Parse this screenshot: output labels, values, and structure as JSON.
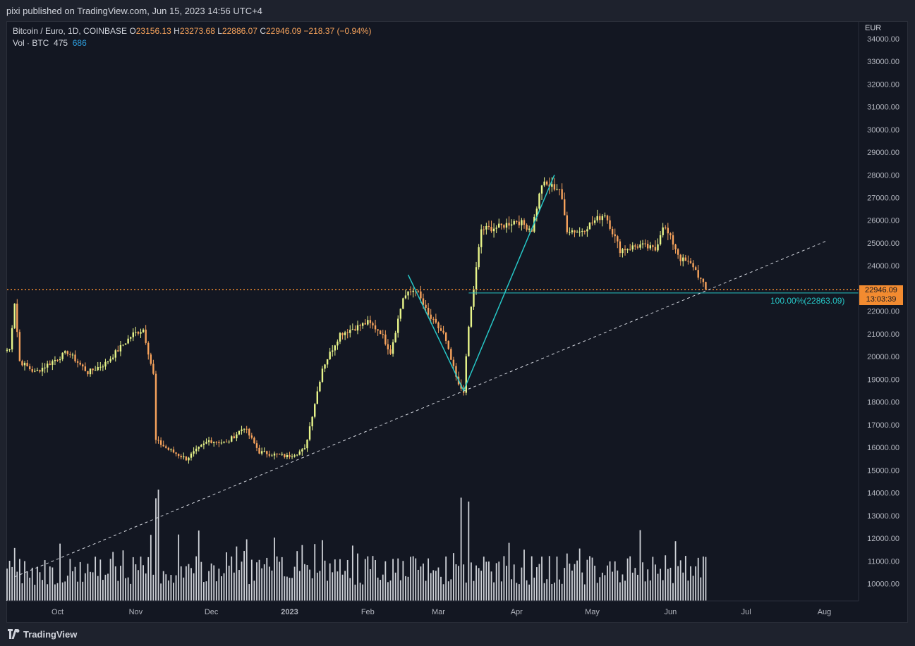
{
  "header": {
    "published": "pixi published on TradingView.com, Jun 15, 2023 14:56 UTC+4"
  },
  "legend": {
    "symbol": "Bitcoin / Euro, 1D, COINBASE",
    "o_label": "O",
    "o_value": "23156.13",
    "h_label": "H",
    "h_value": "23273.68",
    "l_label": "L",
    "l_value": "22886.07",
    "c_label": "C",
    "c_value": "22946.09",
    "change": "−218.37 (−0.94%)",
    "vol_label": "Vol · BTC",
    "vol_value1": "475",
    "vol_value2": "686"
  },
  "price_axis": {
    "currency": "EUR"
  },
  "last_price": {
    "value": "22946.09",
    "countdown": "13:03:39"
  },
  "fib": {
    "label": "100.00%(22863.09)"
  },
  "footer": {
    "brand": "TradingView"
  },
  "colors": {
    "up": "#e8f58a",
    "down": "#f7a35c",
    "volume": "#cfd2d8",
    "pattern": "#26c6c6",
    "trend": "#d1d4dc",
    "price_line": "#f28b30",
    "background": "#131722"
  },
  "chart_data": {
    "type": "candlestick",
    "title": "Bitcoin / Euro, 1D, COINBASE",
    "x_tick_labels": [
      "Oct",
      "Nov",
      "Dec",
      "2023",
      "Feb",
      "Mar",
      "Apr",
      "May",
      "Jun",
      "Jul",
      "Aug"
    ],
    "y_tick_labels": [
      "10000.00",
      "11000.00",
      "12000.00",
      "13000.00",
      "14000.00",
      "15000.00",
      "16000.00",
      "17000.00",
      "18000.00",
      "19000.00",
      "20000.00",
      "21000.00",
      "22000.00",
      "23000.00",
      "24000.00",
      "25000.00",
      "26000.00",
      "27000.00",
      "28000.00",
      "29000.00",
      "30000.00",
      "31000.00",
      "32000.00",
      "33000.00",
      "34000.00"
    ],
    "ylim": [
      9200,
      34600
    ],
    "price_anchors": [
      [
        "2022-09-12",
        20300
      ],
      [
        "2022-09-14",
        22400
      ],
      [
        "2022-09-16",
        19800
      ],
      [
        "2022-09-22",
        19300
      ],
      [
        "2022-10-05",
        20200
      ],
      [
        "2022-10-13",
        19300
      ],
      [
        "2022-10-20",
        19700
      ],
      [
        "2022-10-31",
        21000
      ],
      [
        "2022-11-04",
        21200
      ],
      [
        "2022-11-08",
        19200
      ],
      [
        "2022-11-09",
        16300
      ],
      [
        "2022-11-14",
        15900
      ],
      [
        "2022-11-21",
        15500
      ],
      [
        "2022-11-30",
        16300
      ],
      [
        "2022-12-07",
        16200
      ],
      [
        "2022-12-14",
        16900
      ],
      [
        "2022-12-20",
        15800
      ],
      [
        "2022-12-31",
        15600
      ],
      [
        "2023-01-07",
        15900
      ],
      [
        "2023-01-14",
        19500
      ],
      [
        "2023-01-21",
        21000
      ],
      [
        "2023-02-01",
        21500
      ],
      [
        "2023-02-06",
        21100
      ],
      [
        "2023-02-10",
        20200
      ],
      [
        "2023-02-15",
        22600
      ],
      [
        "2023-02-20",
        23000
      ],
      [
        "2023-02-25",
        21800
      ],
      [
        "2023-03-03",
        21000
      ],
      [
        "2023-03-09",
        18700
      ],
      [
        "2023-03-11",
        18500
      ],
      [
        "2023-03-13",
        21300
      ],
      [
        "2023-03-15",
        23000
      ],
      [
        "2023-03-18",
        25600
      ],
      [
        "2023-03-25",
        25700
      ],
      [
        "2023-04-01",
        26000
      ],
      [
        "2023-04-07",
        25600
      ],
      [
        "2023-04-11",
        27600
      ],
      [
        "2023-04-18",
        27400
      ],
      [
        "2023-04-21",
        25600
      ],
      [
        "2023-04-26",
        25500
      ],
      [
        "2023-05-06",
        26300
      ],
      [
        "2023-05-12",
        24700
      ],
      [
        "2023-05-20",
        24900
      ],
      [
        "2023-05-26",
        24700
      ],
      [
        "2023-05-29",
        25800
      ],
      [
        "2023-06-02",
        25000
      ],
      [
        "2023-06-05",
        24300
      ],
      [
        "2023-06-10",
        24000
      ],
      [
        "2023-06-15",
        22946
      ]
    ],
    "volume_scale_max_btc": 1800,
    "annotations": {
      "trendline": {
        "from": [
          "2022-09-14",
          10300
        ],
        "to": [
          "2023-08-02",
          25100
        ],
        "style": "dashed"
      },
      "last_price_line": 22946.09,
      "fib_level": 22863.09,
      "pattern_points": [
        [
          "2023-02-17",
          23600
        ],
        [
          "2023-03-11",
          18500
        ],
        [
          "2023-04-16",
          28000
        ]
      ]
    }
  }
}
